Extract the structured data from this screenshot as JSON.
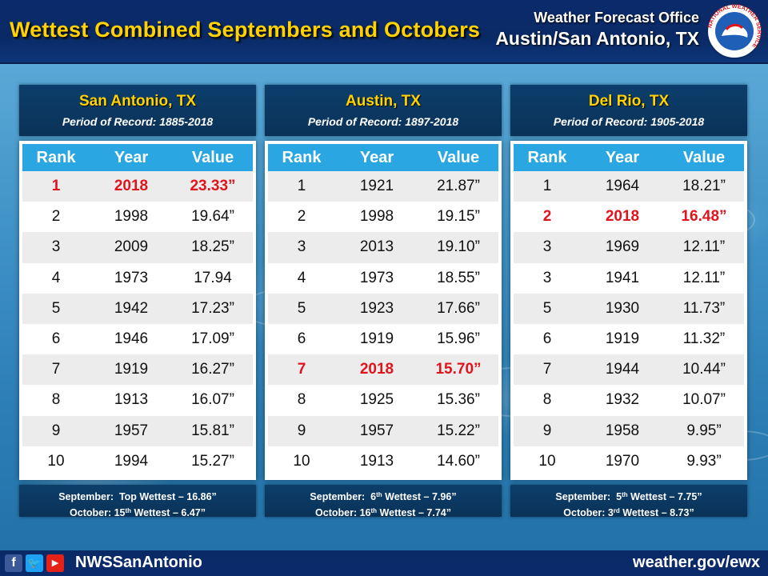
{
  "header": {
    "title": "Wettest Combined Septembers and Octobers",
    "office_line1": "Weather Forecast Office",
    "office_line2": "Austin/San Antonio, TX",
    "logo_ring_text": "NATIONAL WEATHER SERVICE"
  },
  "columns": [
    "Rank",
    "Year",
    "Value"
  ],
  "stations": [
    {
      "name": "San Antonio, TX",
      "period": "Period of Record: 1885-2018",
      "rows": [
        {
          "rank": "1",
          "year": "2018",
          "value": "23.33”",
          "highlight": true
        },
        {
          "rank": "2",
          "year": "1998",
          "value": "19.64”",
          "highlight": false
        },
        {
          "rank": "3",
          "year": "2009",
          "value": "18.25”",
          "highlight": false
        },
        {
          "rank": "4",
          "year": "1973",
          "value": "17.94",
          "highlight": false
        },
        {
          "rank": "5",
          "year": "1942",
          "value": "17.23”",
          "highlight": false
        },
        {
          "rank": "6",
          "year": "1946",
          "value": "17.09”",
          "highlight": false
        },
        {
          "rank": "7",
          "year": "1919",
          "value": "16.27”",
          "highlight": false
        },
        {
          "rank": "8",
          "year": "1913",
          "value": "16.07”",
          "highlight": false
        },
        {
          "rank": "9",
          "year": "1957",
          "value": "15.81”",
          "highlight": false
        },
        {
          "rank": "10",
          "year": "1994",
          "value": "15.27”",
          "highlight": false
        }
      ],
      "note": {
        "sep_label": "September:",
        "sep_rank": "Top Wettest",
        "sep_sup": "",
        "sep_value": "16.86”",
        "oct_label": "October:",
        "oct_rank": "15",
        "oct_sup": "th",
        "oct_value": "6.47”"
      }
    },
    {
      "name": "Austin, TX",
      "period": "Period of Record: 1897-2018",
      "rows": [
        {
          "rank": "1",
          "year": "1921",
          "value": "21.87”",
          "highlight": false
        },
        {
          "rank": "2",
          "year": "1998",
          "value": "19.15”",
          "highlight": false
        },
        {
          "rank": "3",
          "year": "2013",
          "value": "19.10”",
          "highlight": false
        },
        {
          "rank": "4",
          "year": "1973",
          "value": "18.55”",
          "highlight": false
        },
        {
          "rank": "5",
          "year": "1923",
          "value": "17.66”",
          "highlight": false
        },
        {
          "rank": "6",
          "year": "1919",
          "value": "15.96”",
          "highlight": false
        },
        {
          "rank": "7",
          "year": "2018",
          "value": "15.70”",
          "highlight": true
        },
        {
          "rank": "8",
          "year": "1925",
          "value": "15.36”",
          "highlight": false
        },
        {
          "rank": "9",
          "year": "1957",
          "value": "15.22”",
          "highlight": false
        },
        {
          "rank": "10",
          "year": "1913",
          "value": "14.60”",
          "highlight": false
        }
      ],
      "note": {
        "sep_label": "September:",
        "sep_rank": "6",
        "sep_sup": "th",
        "sep_value": "7.96”",
        "oct_label": "October:",
        "oct_rank": "16",
        "oct_sup": "th",
        "oct_value": "7.74”"
      }
    },
    {
      "name": "Del Rio, TX",
      "period": "Period of Record: 1905-2018",
      "rows": [
        {
          "rank": "1",
          "year": "1964",
          "value": "18.21”",
          "highlight": false
        },
        {
          "rank": "2",
          "year": "2018",
          "value": "16.48”",
          "highlight": true
        },
        {
          "rank": "3",
          "year": "1969",
          "value": "12.11”",
          "highlight": false
        },
        {
          "rank": "3",
          "year": "1941",
          "value": "12.11”",
          "highlight": false
        },
        {
          "rank": "5",
          "year": "1930",
          "value": "11.73”",
          "highlight": false
        },
        {
          "rank": "6",
          "year": "1919",
          "value": "11.32”",
          "highlight": false
        },
        {
          "rank": "7",
          "year": "1944",
          "value": "10.44”",
          "highlight": false
        },
        {
          "rank": "8",
          "year": "1932",
          "value": "10.07”",
          "highlight": false
        },
        {
          "rank": "9",
          "year": "1958",
          "value": "9.95”",
          "highlight": false
        },
        {
          "rank": "10",
          "year": "1970",
          "value": "9.93”",
          "highlight": false
        }
      ],
      "note": {
        "sep_label": "September:",
        "sep_rank": "5",
        "sep_sup": "th",
        "sep_value": "7.75”",
        "oct_label": "October:",
        "oct_rank": "3",
        "oct_sup": "rd",
        "oct_value": "8.73”"
      }
    }
  ],
  "note_wettest_word": "Wettest",
  "note_dash": "–",
  "footer": {
    "handle": "NWSSanAntonio",
    "website": "weather.gov/ewx",
    "social_icons": [
      "facebook-icon",
      "twitter-icon",
      "youtube-icon"
    ]
  },
  "colors": {
    "title_yellow": "#ffd200",
    "header_navy": "#0b2a6b",
    "table_header_blue": "#2aa7e3",
    "highlight_red": "#e0141c"
  }
}
